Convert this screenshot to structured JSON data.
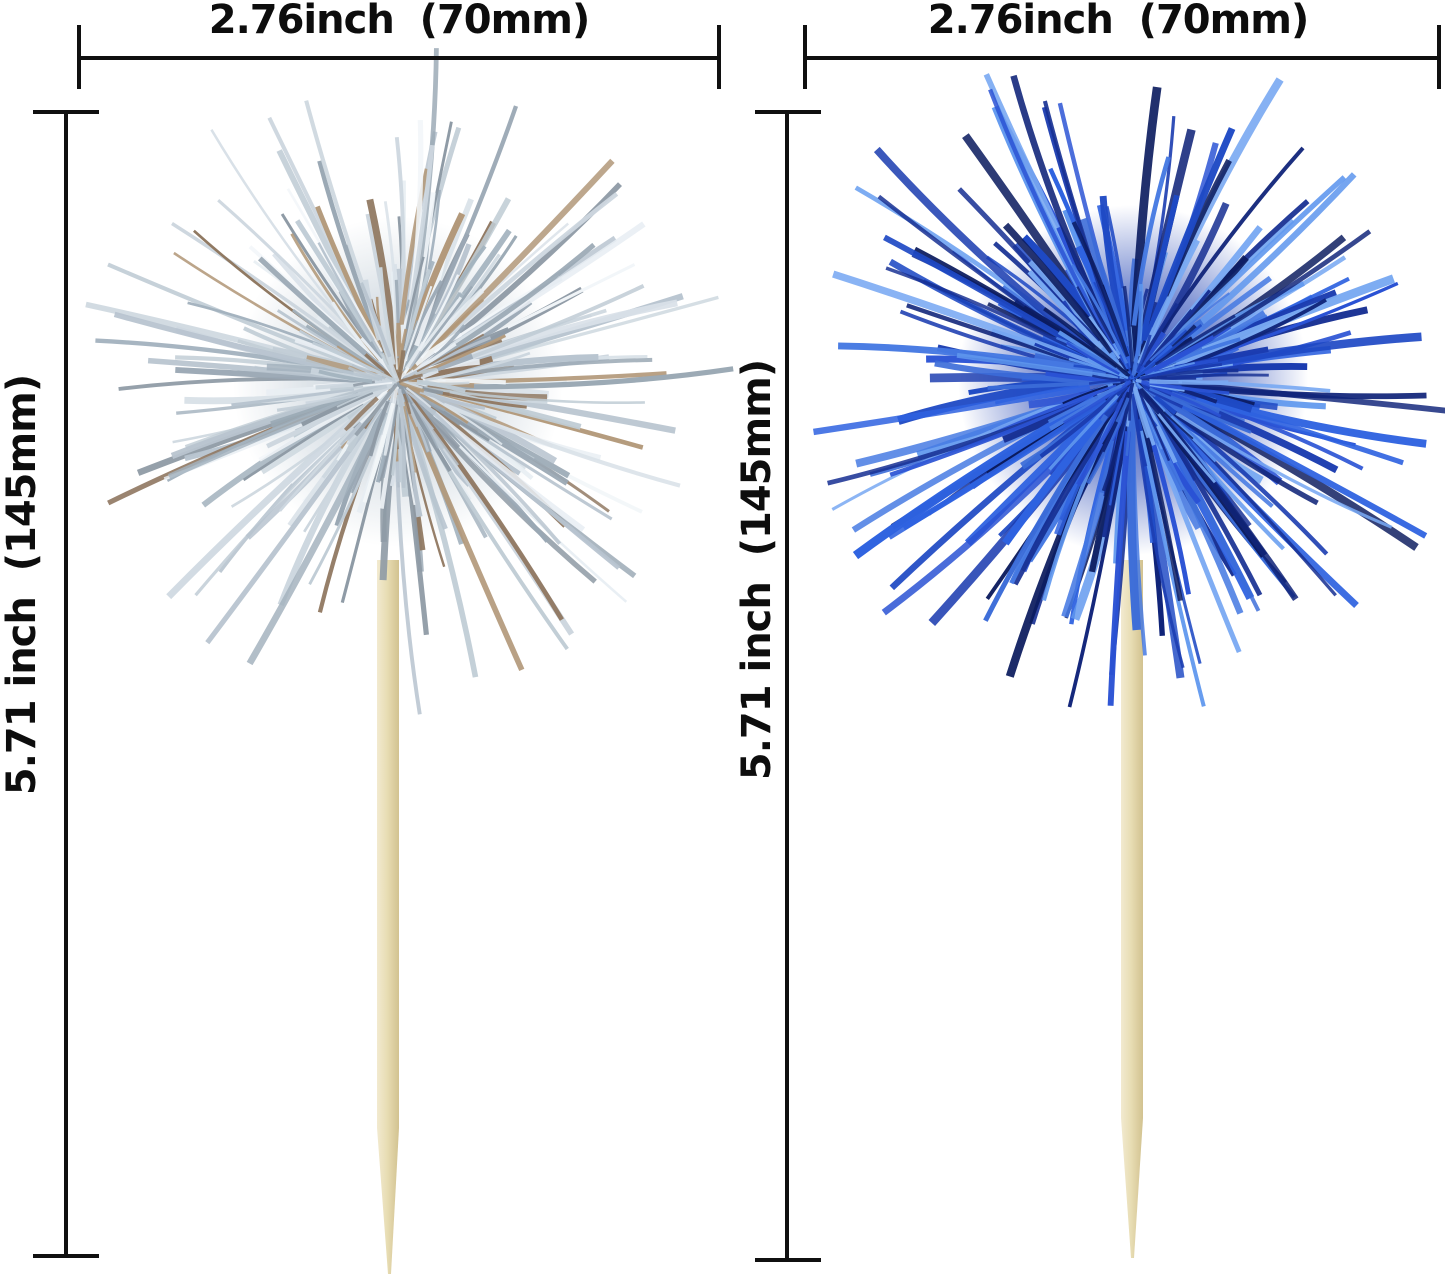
{
  "product_diagram": {
    "left_pick": {
      "width_label": "2.76inch  (70mm)",
      "height_label": "5.71 inch  (145mm)",
      "pom_color_name": "silver-tinsel",
      "pom_palette": [
        "#cdd7df",
        "#b8c4cf",
        "#e8eef3",
        "#a3b2be",
        "#8e9aa5",
        "#d9e1e8",
        "#c0ccd5",
        "#b29879",
        "#8f7760",
        "#f2f6f9",
        "#9aa8b4"
      ],
      "pom_center_color": "#c4cfd8",
      "stick_colors": {
        "light": "#f2ead0",
        "base": "#e8ddb4",
        "dark": "#d2c290"
      }
    },
    "right_pick": {
      "width_label": "2.76inch  (70mm)",
      "height_label": "5.71 inch  (145mm)",
      "pom_color_name": "blue-tinsel",
      "pom_palette": [
        "#2a52d4",
        "#1b3cb0",
        "#4579e2",
        "#6098ee",
        "#102479",
        "#2e62e0",
        "#173093",
        "#79a9f2",
        "#0b1b5e",
        "#3b6cd8",
        "#1e49c4"
      ],
      "pom_center_color": "#1e40b2",
      "stick_colors": {
        "light": "#f2ead0",
        "base": "#e8ddb4",
        "dark": "#d2c290"
      }
    },
    "dimension_line_color": "#101010",
    "background_color": "#ffffff"
  }
}
